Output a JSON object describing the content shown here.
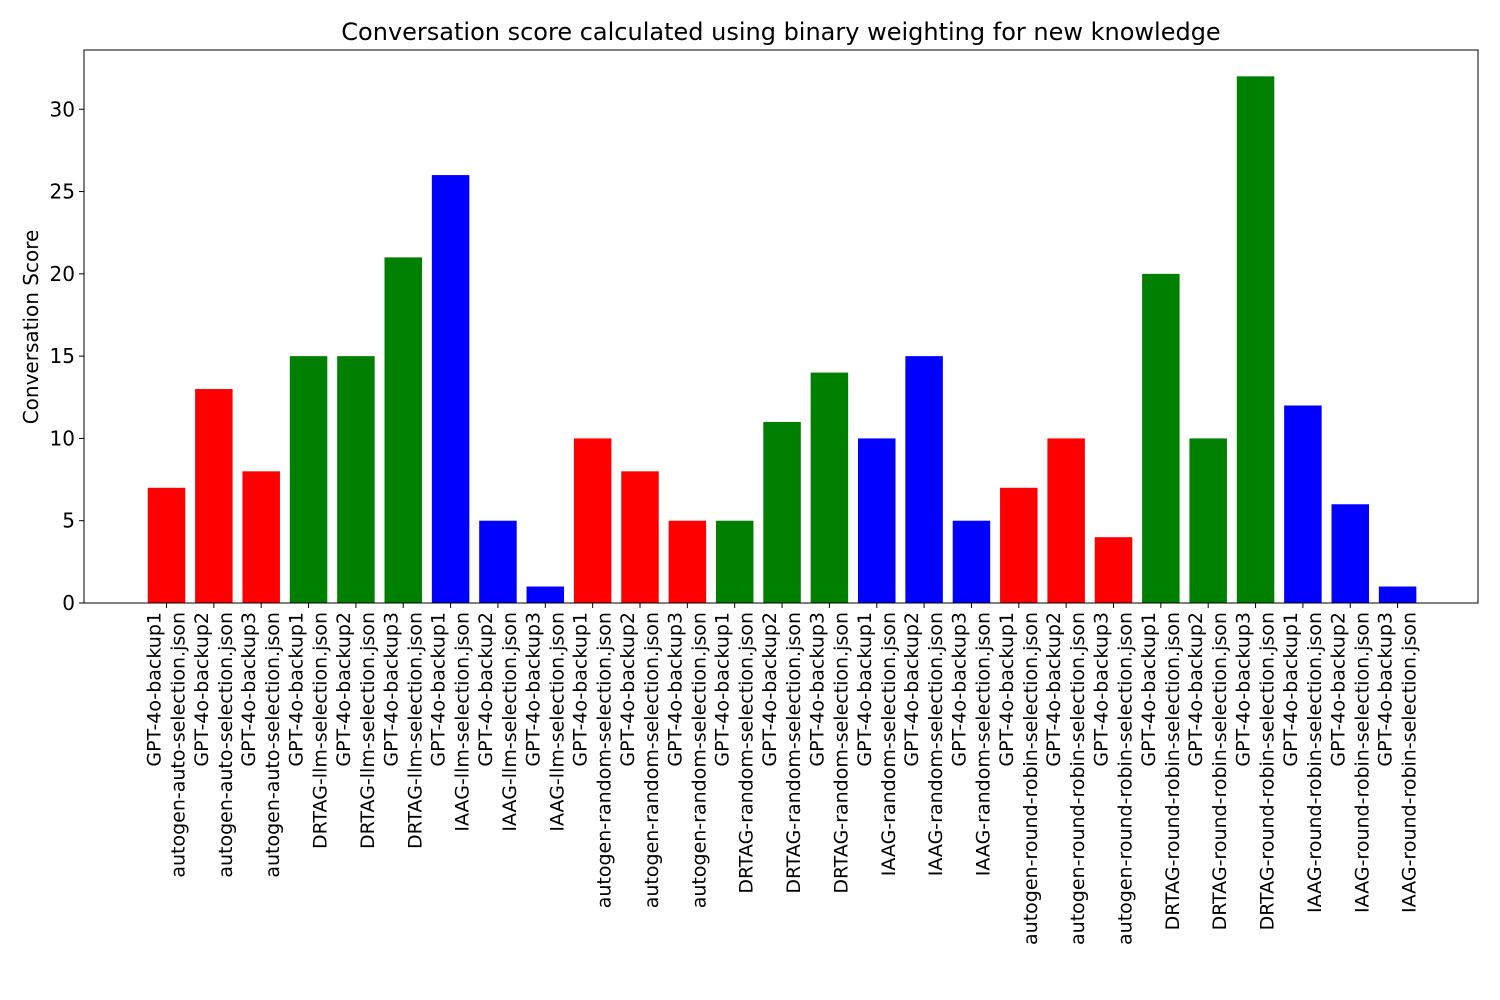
{
  "chart_data": {
    "type": "bar",
    "title": "Conversation score calculated using binary weighting for new knowledge",
    "xlabel": "",
    "ylabel": "Conversation Score",
    "ylim": [
      0,
      33.6
    ],
    "yticks": [
      0,
      5,
      10,
      15,
      20,
      25,
      30
    ],
    "grid": false,
    "categories": [
      [
        "GPT-4o-backup1",
        "autogen-auto-selection.json"
      ],
      [
        "GPT-4o-backup2",
        "autogen-auto-selection.json"
      ],
      [
        "GPT-4o-backup3",
        "autogen-auto-selection.json"
      ],
      [
        "GPT-4o-backup1",
        "DRTAG-llm-selection.json"
      ],
      [
        "GPT-4o-backup2",
        "DRTAG-llm-selection.json"
      ],
      [
        "GPT-4o-backup3",
        "DRTAG-llm-selection.json"
      ],
      [
        "GPT-4o-backup1",
        "IAAG-llm-selection.json"
      ],
      [
        "GPT-4o-backup2",
        "IAAG-llm-selection.json"
      ],
      [
        "GPT-4o-backup3",
        "IAAG-llm-selection.json"
      ],
      [
        "GPT-4o-backup1",
        "autogen-random-selection.json"
      ],
      [
        "GPT-4o-backup2",
        "autogen-random-selection.json"
      ],
      [
        "GPT-4o-backup3",
        "autogen-random-selection.json"
      ],
      [
        "GPT-4o-backup1",
        "DRTAG-random-selection.json"
      ],
      [
        "GPT-4o-backup2",
        "DRTAG-random-selection.json"
      ],
      [
        "GPT-4o-backup3",
        "DRTAG-random-selection.json"
      ],
      [
        "GPT-4o-backup1",
        "IAAG-random-selection.json"
      ],
      [
        "GPT-4o-backup2",
        "IAAG-random-selection.json"
      ],
      [
        "GPT-4o-backup3",
        "IAAG-random-selection.json"
      ],
      [
        "GPT-4o-backup1",
        "autogen-round-robin-selection.json"
      ],
      [
        "GPT-4o-backup2",
        "autogen-round-robin-selection.json"
      ],
      [
        "GPT-4o-backup3",
        "autogen-round-robin-selection.json"
      ],
      [
        "GPT-4o-backup1",
        "DRTAG-round-robin-selection.json"
      ],
      [
        "GPT-4o-backup2",
        "DRTAG-round-robin-selection.json"
      ],
      [
        "GPT-4o-backup3",
        "DRTAG-round-robin-selection.json"
      ],
      [
        "GPT-4o-backup1",
        "IAAG-round-robin-selection.json"
      ],
      [
        "GPT-4o-backup2",
        "IAAG-round-robin-selection.json"
      ],
      [
        "GPT-4o-backup3",
        "IAAG-round-robin-selection.json"
      ]
    ],
    "values": [
      7,
      13,
      8,
      15,
      15,
      21,
      26,
      5,
      1,
      10,
      8,
      5,
      5,
      11,
      14,
      10,
      15,
      5,
      7,
      10,
      4,
      20,
      10,
      32,
      12,
      6,
      1
    ],
    "bar_colors": [
      "#ff0000",
      "#ff0000",
      "#ff0000",
      "#008000",
      "#008000",
      "#008000",
      "#0000ff",
      "#0000ff",
      "#0000ff",
      "#ff0000",
      "#ff0000",
      "#ff0000",
      "#008000",
      "#008000",
      "#008000",
      "#0000ff",
      "#0000ff",
      "#0000ff",
      "#ff0000",
      "#ff0000",
      "#ff0000",
      "#008000",
      "#008000",
      "#008000",
      "#0000ff",
      "#0000ff",
      "#0000ff"
    ]
  }
}
